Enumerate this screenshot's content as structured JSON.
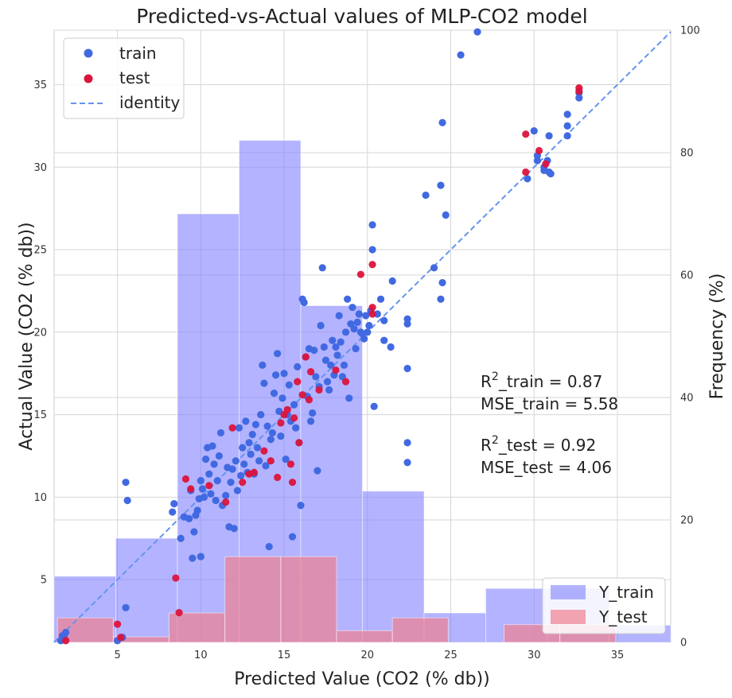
{
  "chart_data": {
    "type": "scatter",
    "title": "Predicted-vs-Actual values of MLP-CO2 model",
    "xlabel": "Predicted Value (CO2 (% db))",
    "ylabel": "Actual Value (CO2 (% db))",
    "y2label": "Frequency (%)",
    "xlim": [
      1.2,
      38.2
    ],
    "ylim": [
      1.2,
      38.3
    ],
    "y2lim": [
      0,
      100
    ],
    "x_ticks": [
      5,
      10,
      15,
      20,
      25,
      30,
      35
    ],
    "y_ticks": [
      5,
      10,
      15,
      20,
      25,
      30,
      35
    ],
    "y2_ticks": [
      0,
      20,
      40,
      60,
      80,
      100
    ],
    "grid": true,
    "legend_points_location": "upper-left",
    "legend_hist_location": "lower-right",
    "legend": {
      "train": "train",
      "test": "test",
      "identity": "identity",
      "y_train": "Y_train",
      "y_test": "Y_test"
    },
    "colors": {
      "train": "#4169e1",
      "test": "#dc143c",
      "identity": "#6495ed",
      "hist_train": "#8080ff",
      "hist_test": "#f08090"
    },
    "annotations": {
      "r2_train_prefix": "R",
      "r2_train_suffix": "_train = 0.87",
      "mse_train": "MSE_train = 5.58",
      "r2_test_prefix": "R",
      "r2_test_suffix": "_test = 0.92",
      "mse_test": "MSE_test = 4.06",
      "superscript": "2"
    },
    "hist_train": [
      {
        "x0": 1.2,
        "x1": 4.9,
        "freq": 10.8
      },
      {
        "x0": 4.9,
        "x1": 8.6,
        "freq": 17
      },
      {
        "x0": 8.6,
        "x1": 12.3,
        "freq": 70
      },
      {
        "x0": 12.3,
        "x1": 16.0,
        "freq": 82
      },
      {
        "x0": 16.0,
        "x1": 19.7,
        "freq": 55
      },
      {
        "x0": 19.7,
        "x1": 23.4,
        "freq": 24.7
      },
      {
        "x0": 23.4,
        "x1": 27.1,
        "freq": 4.8
      },
      {
        "x0": 27.1,
        "x1": 30.8,
        "freq": 8.8
      },
      {
        "x0": 30.8,
        "x1": 34.5,
        "freq": 8.8
      },
      {
        "x0": 34.5,
        "x1": 38.2,
        "freq": 2.8
      }
    ],
    "hist_test": [
      {
        "x0": 1.4,
        "x1": 4.75,
        "freq": 4
      },
      {
        "x0": 4.75,
        "x1": 8.1,
        "freq": 0.9
      },
      {
        "x0": 8.1,
        "x1": 11.45,
        "freq": 4.8
      },
      {
        "x0": 11.45,
        "x1": 14.8,
        "freq": 14
      },
      {
        "x0": 14.8,
        "x1": 18.15,
        "freq": 14
      },
      {
        "x0": 18.15,
        "x1": 21.5,
        "freq": 1.9
      },
      {
        "x0": 21.5,
        "x1": 24.85,
        "freq": 4
      },
      {
        "x0": 24.85,
        "x1": 28.2,
        "freq": 0
      },
      {
        "x0": 28.2,
        "x1": 31.55,
        "freq": 2.9
      },
      {
        "x0": 31.55,
        "x1": 34.9,
        "freq": 2.9
      }
    ],
    "series": [
      {
        "name": "train",
        "points": [
          [
            1.6,
            1.3
          ],
          [
            1.7,
            1.6
          ],
          [
            1.8,
            1.5
          ],
          [
            1.9,
            1.8
          ],
          [
            5.0,
            1.3
          ],
          [
            5.3,
            1.5
          ],
          [
            5.5,
            10.9
          ],
          [
            5.6,
            9.8
          ],
          [
            5.5,
            3.3
          ],
          [
            8.3,
            9.1
          ],
          [
            8.4,
            9.6
          ],
          [
            8.8,
            7.5
          ],
          [
            9.0,
            8.8
          ],
          [
            9.3,
            8.7
          ],
          [
            9.4,
            10.4
          ],
          [
            9.5,
            6.3
          ],
          [
            9.6,
            7.9
          ],
          [
            9.7,
            8.9
          ],
          [
            9.8,
            9.2
          ],
          [
            9.9,
            9.9
          ],
          [
            10.0,
            6.4
          ],
          [
            10.0,
            11.0
          ],
          [
            10.1,
            10.5
          ],
          [
            10.2,
            10.0
          ],
          [
            10.3,
            12.3
          ],
          [
            10.4,
            13.0
          ],
          [
            10.5,
            11.4
          ],
          [
            10.6,
            10.2
          ],
          [
            10.7,
            13.1
          ],
          [
            10.8,
            12.0
          ],
          [
            10.9,
            9.8
          ],
          [
            11.0,
            11.0
          ],
          [
            11.1,
            12.5
          ],
          [
            11.2,
            13.9
          ],
          [
            11.3,
            9.5
          ],
          [
            11.5,
            10.1
          ],
          [
            11.6,
            11.8
          ],
          [
            11.7,
            8.2
          ],
          [
            11.8,
            10.9
          ],
          [
            11.9,
            11.7
          ],
          [
            12.0,
            8.1
          ],
          [
            12.1,
            12.2
          ],
          [
            12.2,
            10.4
          ],
          [
            12.3,
            14.2
          ],
          [
            12.4,
            11.3
          ],
          [
            12.5,
            13.0
          ],
          [
            12.6,
            12.0
          ],
          [
            12.7,
            14.6
          ],
          [
            12.8,
            11.5
          ],
          [
            12.9,
            13.3
          ],
          [
            13.0,
            12.6
          ],
          [
            13.1,
            13.8
          ],
          [
            13.2,
            11.4
          ],
          [
            13.3,
            14.4
          ],
          [
            13.4,
            13.0
          ],
          [
            13.5,
            12.2
          ],
          [
            13.6,
            15.0
          ],
          [
            13.7,
            18.0
          ],
          [
            13.8,
            16.9
          ],
          [
            13.9,
            11.9
          ],
          [
            14.0,
            14.3
          ],
          [
            14.1,
            7.0
          ],
          [
            14.2,
            13.5
          ],
          [
            14.3,
            13.9
          ],
          [
            14.4,
            16.3
          ],
          [
            14.5,
            17.4
          ],
          [
            14.6,
            18.7
          ],
          [
            14.7,
            15.2
          ],
          [
            14.8,
            13.7
          ],
          [
            14.9,
            16.0
          ],
          [
            15.0,
            17.5
          ],
          [
            15.1,
            12.3
          ],
          [
            15.2,
            15.0
          ],
          [
            15.3,
            16.8
          ],
          [
            15.4,
            14.6
          ],
          [
            15.5,
            7.6
          ],
          [
            15.6,
            15.6
          ],
          [
            15.7,
            14.2
          ],
          [
            15.8,
            17.9
          ],
          [
            15.9,
            13.3
          ],
          [
            16.0,
            9.5
          ],
          [
            16.1,
            22.0
          ],
          [
            16.2,
            21.8
          ],
          [
            16.3,
            18.5
          ],
          [
            16.4,
            16.1
          ],
          [
            16.5,
            19.0
          ],
          [
            16.6,
            14.6
          ],
          [
            16.7,
            15.1
          ],
          [
            16.8,
            18.9
          ],
          [
            16.9,
            17.3
          ],
          [
            17.0,
            11.6
          ],
          [
            17.1,
            16.7
          ],
          [
            17.2,
            20.4
          ],
          [
            17.3,
            23.9
          ],
          [
            17.4,
            19.1
          ],
          [
            17.5,
            18.3
          ],
          [
            17.6,
            17.0
          ],
          [
            17.7,
            16.5
          ],
          [
            17.8,
            18.0
          ],
          [
            17.9,
            19.5
          ],
          [
            18.0,
            17.4
          ],
          [
            18.1,
            19.1
          ],
          [
            18.2,
            18.6
          ],
          [
            18.3,
            21.0
          ],
          [
            18.4,
            19.4
          ],
          [
            18.5,
            17.3
          ],
          [
            18.6,
            18.0
          ],
          [
            18.7,
            20.0
          ],
          [
            18.8,
            22.0
          ],
          [
            18.9,
            16.0
          ],
          [
            19.0,
            20.5
          ],
          [
            19.1,
            21.5
          ],
          [
            19.2,
            20.2
          ],
          [
            19.3,
            19.0
          ],
          [
            19.4,
            20.6
          ],
          [
            19.5,
            21.1
          ],
          [
            19.6,
            20.0
          ],
          [
            19.7,
            19.9
          ],
          [
            19.8,
            19.6
          ],
          [
            19.9,
            21.0
          ],
          [
            20.0,
            20.0
          ],
          [
            20.1,
            20.4
          ],
          [
            20.2,
            21.3
          ],
          [
            20.3,
            25.0
          ],
          [
            20.3,
            26.5
          ],
          [
            20.4,
            15.5
          ],
          [
            20.6,
            21.1
          ],
          [
            20.8,
            22.0
          ],
          [
            21.0,
            20.7
          ],
          [
            21.0,
            19.5
          ],
          [
            21.4,
            19.1
          ],
          [
            21.5,
            23.1
          ],
          [
            22.4,
            20.8
          ],
          [
            22.4,
            20.5
          ],
          [
            22.4,
            17.8
          ],
          [
            22.4,
            13.3
          ],
          [
            22.4,
            12.1
          ],
          [
            23.5,
            28.3
          ],
          [
            24.0,
            23.9
          ],
          [
            24.4,
            28.9
          ],
          [
            24.4,
            22.0
          ],
          [
            24.5,
            32.7
          ],
          [
            24.5,
            23.0
          ],
          [
            24.7,
            27.1
          ],
          [
            25.6,
            36.8
          ],
          [
            26.6,
            38.2
          ],
          [
            29.6,
            29.3
          ],
          [
            30.0,
            32.2
          ],
          [
            30.2,
            30.4
          ],
          [
            30.2,
            30.7
          ],
          [
            30.6,
            29.8
          ],
          [
            30.6,
            30.0
          ],
          [
            30.8,
            30.4
          ],
          [
            30.9,
            31.9
          ],
          [
            30.9,
            29.7
          ],
          [
            31.0,
            29.6
          ],
          [
            32.0,
            31.9
          ],
          [
            32.0,
            32.5
          ],
          [
            32.0,
            33.2
          ],
          [
            32.7,
            34.2
          ],
          [
            32.7,
            34.5
          ]
        ]
      },
      {
        "name": "test",
        "points": [
          [
            1.9,
            1.3
          ],
          [
            5.0,
            2.3
          ],
          [
            5.2,
            1.5
          ],
          [
            8.5,
            5.1
          ],
          [
            8.7,
            3.0
          ],
          [
            9.1,
            11.1
          ],
          [
            9.4,
            10.5
          ],
          [
            10.5,
            10.7
          ],
          [
            11.5,
            9.7
          ],
          [
            11.9,
            14.2
          ],
          [
            12.5,
            10.9
          ],
          [
            12.9,
            11.4
          ],
          [
            13.2,
            11.5
          ],
          [
            13.8,
            12.8
          ],
          [
            14.2,
            12.2
          ],
          [
            14.6,
            11.2
          ],
          [
            14.8,
            14.5
          ],
          [
            15.0,
            15.0
          ],
          [
            15.2,
            15.3
          ],
          [
            15.4,
            12.0
          ],
          [
            15.5,
            10.9
          ],
          [
            15.6,
            14.8
          ],
          [
            15.8,
            17.0
          ],
          [
            15.9,
            13.3
          ],
          [
            16.1,
            16.2
          ],
          [
            16.3,
            18.5
          ],
          [
            16.5,
            15.9
          ],
          [
            16.6,
            17.6
          ],
          [
            17.1,
            16.5
          ],
          [
            18.1,
            17.7
          ],
          [
            18.7,
            17.0
          ],
          [
            19.6,
            23.5
          ],
          [
            20.3,
            24.1
          ],
          [
            20.3,
            21.5
          ],
          [
            20.3,
            21.1
          ],
          [
            29.5,
            32.0
          ],
          [
            29.5,
            29.7
          ],
          [
            30.3,
            31.0
          ],
          [
            30.7,
            30.2
          ],
          [
            32.7,
            34.8
          ],
          [
            32.7,
            34.6
          ]
        ]
      }
    ]
  }
}
